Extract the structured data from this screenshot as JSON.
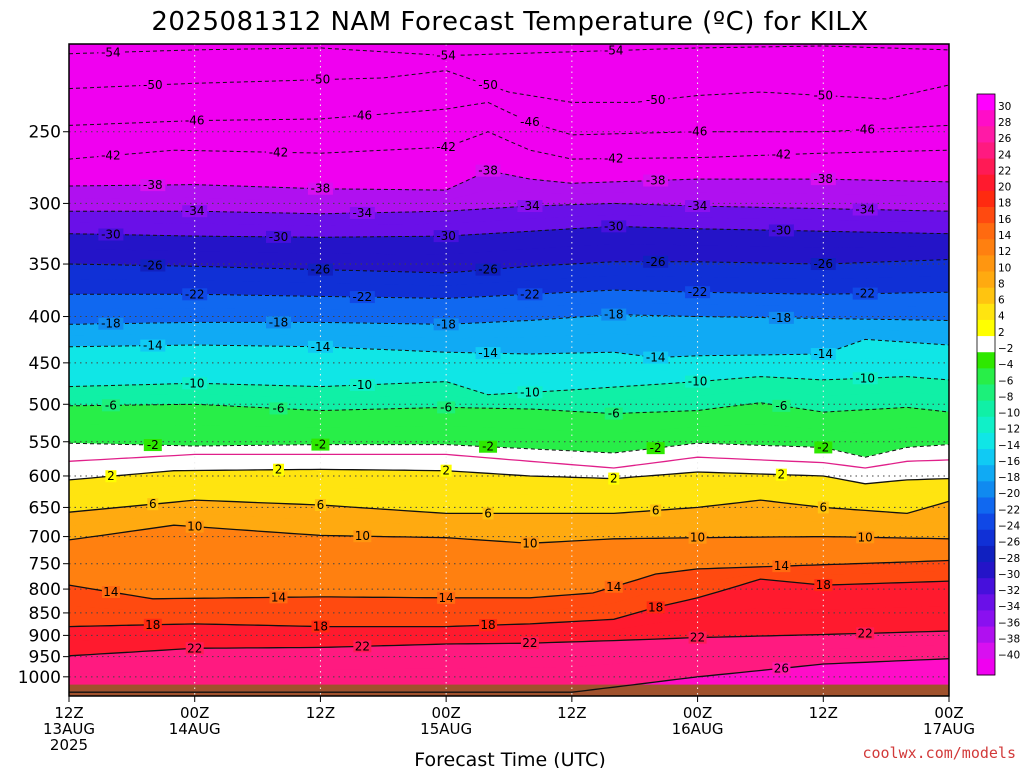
{
  "chart_data": {
    "type": "heatmap",
    "title": "2025081312 NAM Forecast Temperature (ºC) for KILX",
    "xlabel": "Forecast Time (UTC)",
    "ylabel": "",
    "credit": "coolwx.com/models",
    "x_ticks": [
      {
        "hour": 0,
        "lines": [
          "12Z",
          "13AUG",
          "2025"
        ]
      },
      {
        "hour": 12,
        "lines": [
          "00Z",
          "14AUG"
        ]
      },
      {
        "hour": 24,
        "lines": [
          "12Z"
        ]
      },
      {
        "hour": 36,
        "lines": [
          "00Z",
          "15AUG"
        ]
      },
      {
        "hour": 48,
        "lines": [
          "12Z"
        ]
      },
      {
        "hour": 60,
        "lines": [
          "00Z",
          "16AUG"
        ]
      },
      {
        "hour": 72,
        "lines": [
          "12Z"
        ]
      },
      {
        "hour": 84,
        "lines": [
          "00Z",
          "17AUG"
        ]
      }
    ],
    "xlim": [
      0,
      84
    ],
    "y_ticks": [
      250,
      300,
      350,
      400,
      450,
      500,
      550,
      600,
      650,
      700,
      750,
      800,
      850,
      900,
      950,
      1000
    ],
    "ylim": [
      1050,
      200
    ],
    "y_scale": "log",
    "colorbar": {
      "labels": [
        30,
        28,
        26,
        24,
        22,
        20,
        18,
        16,
        14,
        12,
        10,
        8,
        6,
        4,
        2,
        -2,
        -4,
        -6,
        -8,
        -10,
        -12,
        -14,
        -16,
        -18,
        -20,
        -22,
        -24,
        -26,
        -28,
        -30,
        -32,
        -34,
        -36,
        -38,
        -40
      ],
      "colors": [
        "#ff00ff",
        "#ff0dc8",
        "#ff1aa6",
        "#ff1a80",
        "#ff1a55",
        "#ff1a2e",
        "#ff2a10",
        "#ff4a10",
        "#ff6a10",
        "#ff8010",
        "#ff9610",
        "#ffaa10",
        "#ffc410",
        "#ffe410",
        "#ffff00",
        "#ffffff",
        "#2ee800",
        "#28ee48",
        "#1cf07a",
        "#10f0a6",
        "#10f0c8",
        "#10e6e6",
        "#10caf4",
        "#10aaf4",
        "#108af0",
        "#1068f0",
        "#1048e6",
        "#1030d6",
        "#1020c0",
        "#2414c8",
        "#4610dc",
        "#6a10e8",
        "#8a10f0",
        "#b010f0",
        "#d810f0",
        "#f000f0"
      ]
    },
    "contours": [
      {
        "value": -54,
        "label": "-54",
        "line": "dashed"
      },
      {
        "value": -50,
        "label": "-50",
        "line": "dashed"
      },
      {
        "value": -46,
        "label": "-46",
        "line": "dashed"
      },
      {
        "value": -42,
        "label": "-42",
        "line": "dashed"
      },
      {
        "value": -38,
        "label": "-38",
        "line": "dashed"
      },
      {
        "value": -34,
        "label": "-34",
        "line": "dashed"
      },
      {
        "value": -30,
        "label": "-30",
        "line": "dashed"
      },
      {
        "value": -26,
        "label": "-26",
        "line": "dashed"
      },
      {
        "value": -22,
        "label": "-22",
        "line": "dashed"
      },
      {
        "value": -18,
        "label": "-18",
        "line": "dashed"
      },
      {
        "value": -14,
        "label": "-14",
        "line": "dashed"
      },
      {
        "value": -10,
        "label": "-10",
        "line": "dashed"
      },
      {
        "value": -6,
        "label": "-6",
        "line": "dashed"
      },
      {
        "value": -2,
        "label": "-2",
        "line": "dashed"
      },
      {
        "value": 0,
        "label": "",
        "line": "magenta"
      },
      {
        "value": 2,
        "label": "2",
        "line": "solid"
      },
      {
        "value": 6,
        "label": "6",
        "line": "solid"
      },
      {
        "value": 10,
        "label": "10",
        "line": "solid"
      },
      {
        "value": 14,
        "label": "14",
        "line": "solid"
      },
      {
        "value": 18,
        "label": "18",
        "line": "solid"
      },
      {
        "value": 22,
        "label": "22",
        "line": "solid"
      },
      {
        "value": 26,
        "label": "26",
        "line": "solid"
      }
    ],
    "isotherm_levels": [
      {
        "t": -54,
        "p": [
          [
            0,
            205
          ],
          [
            12,
            203
          ],
          [
            24,
            202
          ],
          [
            36,
            206
          ],
          [
            48,
            204
          ],
          [
            60,
            202
          ],
          [
            72,
            201
          ],
          [
            84,
            203
          ]
        ]
      },
      {
        "t": -50,
        "p": [
          [
            0,
            224
          ],
          [
            12,
            221
          ],
          [
            24,
            219
          ],
          [
            30,
            218
          ],
          [
            36,
            214
          ],
          [
            42,
            226
          ],
          [
            48,
            232
          ],
          [
            54,
            232
          ],
          [
            60,
            228
          ],
          [
            66,
            226
          ],
          [
            72,
            228
          ],
          [
            78,
            230
          ],
          [
            84,
            222
          ]
        ]
      },
      {
        "t": -46,
        "p": [
          [
            0,
            246
          ],
          [
            12,
            243
          ],
          [
            24,
            242
          ],
          [
            36,
            236
          ],
          [
            40,
            232
          ],
          [
            44,
            244
          ],
          [
            48,
            252
          ],
          [
            60,
            250
          ],
          [
            72,
            250
          ],
          [
            84,
            246
          ]
        ]
      },
      {
        "t": -42,
        "p": [
          [
            0,
            268
          ],
          [
            10,
            262
          ],
          [
            24,
            264
          ],
          [
            36,
            260
          ],
          [
            40,
            250
          ],
          [
            44,
            262
          ],
          [
            48,
            268
          ],
          [
            60,
            267
          ],
          [
            72,
            264
          ],
          [
            84,
            262
          ]
        ]
      },
      {
        "t": -38,
        "p": [
          [
            0,
            287
          ],
          [
            12,
            286
          ],
          [
            24,
            289
          ],
          [
            36,
            290
          ],
          [
            40,
            276
          ],
          [
            44,
            282
          ],
          [
            48,
            285
          ],
          [
            60,
            282
          ],
          [
            72,
            282
          ],
          [
            84,
            284
          ]
        ]
      },
      {
        "t": -34,
        "p": [
          [
            0,
            306
          ],
          [
            12,
            306
          ],
          [
            24,
            308
          ],
          [
            36,
            306
          ],
          [
            44,
            302
          ],
          [
            52,
            300
          ],
          [
            60,
            302
          ],
          [
            72,
            304
          ],
          [
            84,
            306
          ]
        ]
      },
      {
        "t": -30,
        "p": [
          [
            0,
            324
          ],
          [
            12,
            326
          ],
          [
            24,
            327
          ],
          [
            36,
            326
          ],
          [
            44,
            322
          ],
          [
            52,
            318
          ],
          [
            60,
            320
          ],
          [
            72,
            322
          ],
          [
            84,
            324
          ]
        ]
      },
      {
        "t": -26,
        "p": [
          [
            0,
            350
          ],
          [
            12,
            352
          ],
          [
            24,
            355
          ],
          [
            36,
            358
          ],
          [
            44,
            352
          ],
          [
            52,
            348
          ],
          [
            60,
            348
          ],
          [
            72,
            350
          ],
          [
            84,
            346
          ]
        ]
      },
      {
        "t": -22,
        "p": [
          [
            0,
            378
          ],
          [
            12,
            378
          ],
          [
            24,
            380
          ],
          [
            36,
            382
          ],
          [
            44,
            378
          ],
          [
            52,
            374
          ],
          [
            60,
            376
          ],
          [
            72,
            378
          ],
          [
            84,
            376
          ]
        ]
      },
      {
        "t": -18,
        "p": [
          [
            0,
            408
          ],
          [
            12,
            406
          ],
          [
            24,
            406
          ],
          [
            36,
            408
          ],
          [
            44,
            404
          ],
          [
            52,
            398
          ],
          [
            60,
            400
          ],
          [
            72,
            402
          ],
          [
            84,
            404
          ]
        ]
      },
      {
        "t": -14,
        "p": [
          [
            0,
            432
          ],
          [
            12,
            430
          ],
          [
            24,
            432
          ],
          [
            36,
            438
          ],
          [
            44,
            440
          ],
          [
            52,
            438
          ],
          [
            56,
            444
          ],
          [
            60,
            442
          ],
          [
            72,
            440
          ],
          [
            76,
            424
          ],
          [
            84,
            430
          ]
        ]
      },
      {
        "t": -10,
        "p": [
          [
            0,
            478
          ],
          [
            12,
            474
          ],
          [
            24,
            478
          ],
          [
            36,
            472
          ],
          [
            40,
            488
          ],
          [
            48,
            482
          ],
          [
            60,
            472
          ],
          [
            66,
            466
          ],
          [
            72,
            470
          ],
          [
            80,
            466
          ],
          [
            84,
            470
          ]
        ]
      },
      {
        "t": -6,
        "p": [
          [
            0,
            502
          ],
          [
            12,
            500
          ],
          [
            24,
            508
          ],
          [
            36,
            504
          ],
          [
            44,
            506
          ],
          [
            52,
            512
          ],
          [
            60,
            508
          ],
          [
            66,
            498
          ],
          [
            72,
            510
          ],
          [
            80,
            504
          ],
          [
            84,
            510
          ]
        ]
      },
      {
        "t": -2,
        "p": [
          [
            0,
            552
          ],
          [
            12,
            556
          ],
          [
            24,
            554
          ],
          [
            36,
            554
          ],
          [
            44,
            560
          ],
          [
            52,
            566
          ],
          [
            60,
            552
          ],
          [
            72,
            558
          ],
          [
            76,
            572
          ],
          [
            80,
            558
          ],
          [
            84,
            554
          ]
        ]
      },
      {
        "t": 0,
        "p": [
          [
            0,
            578
          ],
          [
            12,
            568
          ],
          [
            24,
            568
          ],
          [
            36,
            568
          ],
          [
            44,
            578
          ],
          [
            52,
            588
          ],
          [
            60,
            572
          ],
          [
            72,
            580
          ],
          [
            76,
            588
          ],
          [
            80,
            578
          ],
          [
            84,
            576
          ]
        ]
      },
      {
        "t": 2,
        "p": [
          [
            0,
            606
          ],
          [
            10,
            592
          ],
          [
            24,
            590
          ],
          [
            36,
            592
          ],
          [
            44,
            600
          ],
          [
            52,
            604
          ],
          [
            60,
            594
          ],
          [
            72,
            600
          ],
          [
            76,
            612
          ],
          [
            80,
            606
          ],
          [
            84,
            604
          ]
        ]
      },
      {
        "t": 6,
        "p": [
          [
            0,
            658
          ],
          [
            12,
            638
          ],
          [
            24,
            646
          ],
          [
            36,
            660
          ],
          [
            44,
            660
          ],
          [
            52,
            660
          ],
          [
            60,
            650
          ],
          [
            66,
            638
          ],
          [
            72,
            650
          ],
          [
            80,
            660
          ],
          [
            84,
            640
          ]
        ]
      },
      {
        "t": 10,
        "p": [
          [
            0,
            706
          ],
          [
            10,
            680
          ],
          [
            24,
            698
          ],
          [
            36,
            702
          ],
          [
            44,
            712
          ],
          [
            52,
            704
          ],
          [
            60,
            702
          ],
          [
            72,
            700
          ],
          [
            84,
            704
          ]
        ]
      },
      {
        "t": 14,
        "p": [
          [
            0,
            792
          ],
          [
            8,
            820
          ],
          [
            24,
            816
          ],
          [
            36,
            818
          ],
          [
            44,
            818
          ],
          [
            50,
            808
          ],
          [
            56,
            770
          ],
          [
            60,
            760
          ],
          [
            72,
            752
          ],
          [
            84,
            744
          ]
        ]
      },
      {
        "t": 18,
        "p": [
          [
            0,
            880
          ],
          [
            12,
            874
          ],
          [
            24,
            880
          ],
          [
            36,
            880
          ],
          [
            44,
            874
          ],
          [
            52,
            864
          ],
          [
            56,
            838
          ],
          [
            60,
            818
          ],
          [
            66,
            780
          ],
          [
            72,
            792
          ],
          [
            84,
            784
          ]
        ]
      },
      {
        "t": 22,
        "p": [
          [
            0,
            948
          ],
          [
            12,
            930
          ],
          [
            24,
            928
          ],
          [
            36,
            920
          ],
          [
            44,
            918
          ],
          [
            52,
            912
          ],
          [
            60,
            905
          ],
          [
            72,
            898
          ],
          [
            84,
            890
          ]
        ]
      },
      {
        "t": 26,
        "p": [
          [
            0,
            1040
          ],
          [
            12,
            1040
          ],
          [
            24,
            1040
          ],
          [
            36,
            1040
          ],
          [
            48,
            1040
          ],
          [
            60,
            1000
          ],
          [
            72,
            968
          ],
          [
            84,
            955
          ]
        ]
      }
    ],
    "ground_level": 1020,
    "ground_color": "#a0522d"
  }
}
